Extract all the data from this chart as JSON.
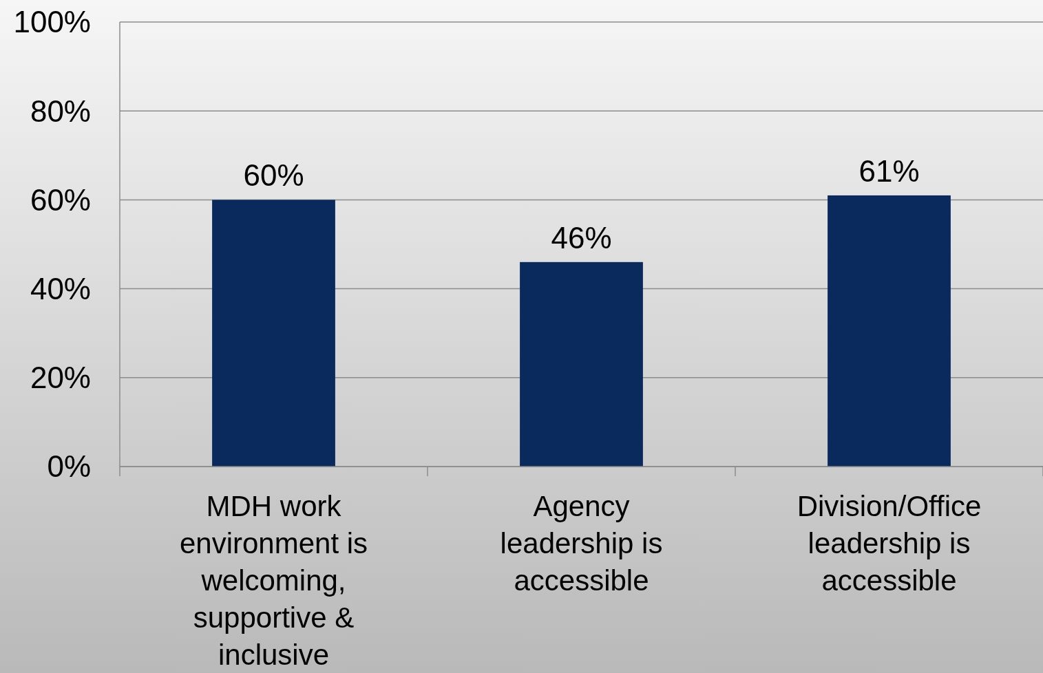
{
  "chart_data": {
    "type": "bar",
    "categories": [
      "MDH work environment is welcoming, supportive & inclusive",
      "Agency leadership is accessible",
      "Division/Office leadership is accessible"
    ],
    "values": [
      60,
      46,
      61
    ],
    "value_labels": [
      "60%",
      "46%",
      "61%"
    ],
    "color": "#0a2a5e",
    "ylim": [
      0,
      100
    ],
    "yticks": [
      {
        "value": 0,
        "label": "0%"
      },
      {
        "value": 20,
        "label": "20%"
      },
      {
        "value": 40,
        "label": "40%"
      },
      {
        "value": 60,
        "label": "60%"
      },
      {
        "value": 80,
        "label": "80%"
      },
      {
        "value": 100,
        "label": "100%"
      }
    ],
    "grid": "y"
  }
}
